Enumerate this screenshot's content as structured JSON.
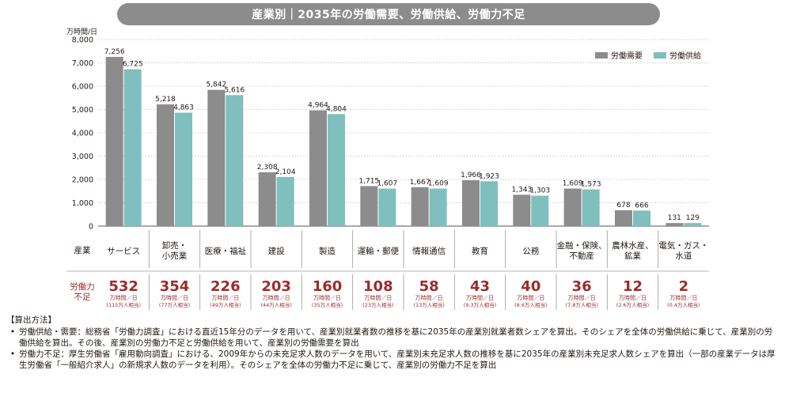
{
  "header": {
    "title": "産業別｜2035年の労働需要、労働供給、労働力不足"
  },
  "chart_data": {
    "type": "bar",
    "unit": "万時間/日",
    "ylim": [
      0,
      8000
    ],
    "yticks": [
      "0",
      "1,000",
      "2,000",
      "3,000",
      "4,000",
      "5,000",
      "6,000",
      "7,000",
      "8,000"
    ],
    "categories": [
      "サービス",
      "卸売・\n小売業",
      "医療・福祉",
      "建設",
      "製造",
      "運輸・郵便",
      "情報通信",
      "教育",
      "公務",
      "金融・保険、\n不動産",
      "農林水産、\n鉱業",
      "電気・ガス・\n水道"
    ],
    "series": [
      {
        "name": "労働需要",
        "color": "#8c8c8c",
        "values": [
          7256,
          5218,
          5842,
          2308,
          4964,
          1715,
          1667,
          1966,
          1343,
          1609,
          678,
          131
        ],
        "labels": [
          "7,256",
          "5,218",
          "5,842",
          "2,308",
          "4,964",
          "1,715",
          "1,667",
          "1,966",
          "1,343",
          "1,609",
          "678",
          "131"
        ]
      },
      {
        "name": "労働供給",
        "color": "#7fbfbd",
        "values": [
          6725,
          4863,
          5616,
          2104,
          4804,
          1607,
          1609,
          1923,
          1303,
          1573,
          666,
          129
        ],
        "labels": [
          "6,725",
          "4,863",
          "5,616",
          "2,104",
          "4,804",
          "1,607",
          "1,609",
          "1,923",
          "1,303",
          "1,573",
          "666",
          "129"
        ]
      }
    ],
    "row_labels": {
      "industry": "産業",
      "shortage": "労働力\n不足"
    },
    "shortage": {
      "values": [
        "532",
        "354",
        "226",
        "203",
        "160",
        "108",
        "58",
        "43",
        "40",
        "36",
        "12",
        "2"
      ],
      "unit": "万時間／日",
      "people": [
        "(115万人相当)",
        "(77万人相当)",
        "(49万人相当)",
        "(44万人相当)",
        "(35万人相当)",
        "(23万人相当)",
        "(13万人相当)",
        "(9.3万人相当)",
        "(8.6万人相当)",
        "(7.8万人相当)",
        "(2.6万人相当)",
        "(0.4万人相当)"
      ]
    },
    "colors": {
      "demand": "#8c8c8c",
      "supply": "#7fbfbd",
      "shortage_text": "#9c2b2b"
    }
  },
  "notes": {
    "heading": "【算出方法】",
    "items": [
      "労働供給・需要：総務省「労働力調査」における直近15年分のデータを用いて、産業別就業者数の推移を基に2035年の産業別就業者数シェアを算出。そのシェアを全体の労働供給に乗じて、産業別の労働供給を算出。その後、産業別の労働力不足と労働供給を用いて、産業別の労働需要を算出",
      "労働力不足：厚生労働省「雇用動向調査」における、2009年からの未充足求人数のデータを用いて、産業別未充足求人数の推移を基に2035年の産業別未充足求人数シェアを算出（一部の産業データは厚生労働省「一般紹介求人」の新規求人数のデータを利用）。そのシェアを全体の労働力不足に乗じて、産業別の労働力不足を算出"
    ]
  }
}
